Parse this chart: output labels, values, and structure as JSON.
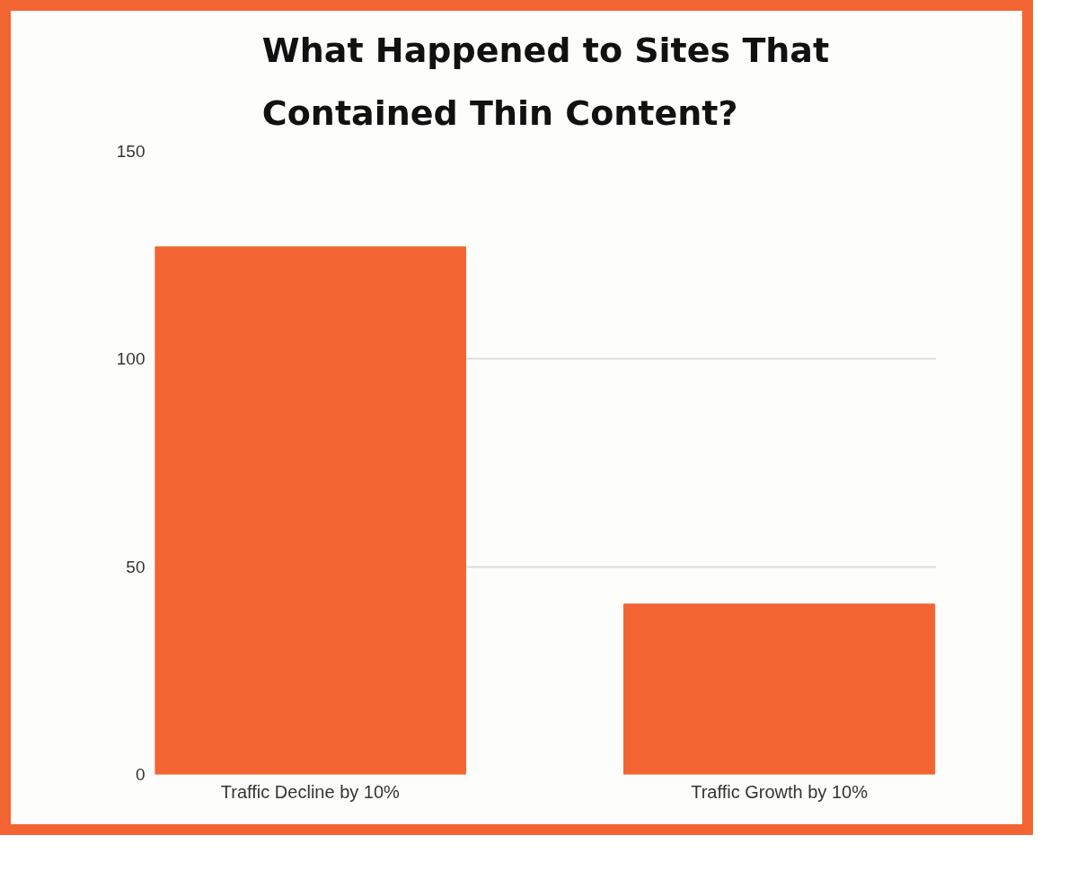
{
  "chart_data": {
    "type": "bar",
    "title": "What Happened to Sites That Contained Thin Content?",
    "categories": [
      "Traffic Decline by 10%",
      "Traffic Growth by 10%"
    ],
    "values": [
      127,
      41
    ],
    "color": "#f26532",
    "ylim": [
      0,
      150
    ],
    "yticks": [
      0,
      50,
      100,
      150
    ],
    "grid": "y"
  }
}
